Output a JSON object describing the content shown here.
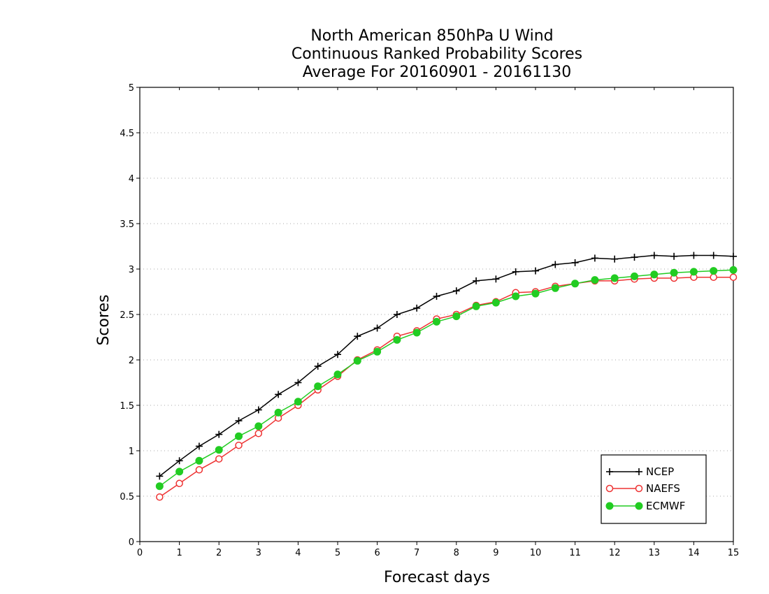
{
  "chart_data": {
    "type": "line",
    "title_lines": [
      "North American 850hPa U Wind",
      "Continuous Ranked Probability Scores",
      "Average For 20160901 - 20161130"
    ],
    "xlabel": "Forecast days",
    "ylabel": "Scores",
    "xlim": [
      0,
      15
    ],
    "ylim": [
      0,
      5
    ],
    "x_ticks": [
      0,
      1,
      2,
      3,
      4,
      5,
      6,
      7,
      8,
      9,
      10,
      11,
      12,
      13,
      14,
      15
    ],
    "y_ticks": [
      0,
      0.5,
      1,
      1.5,
      2,
      2.5,
      3,
      3.5,
      4,
      4.5,
      5
    ],
    "grid": "horizontal dotted",
    "legend_position": "bottom-right",
    "x": [
      0.5,
      1,
      1.5,
      2,
      2.5,
      3,
      3.5,
      4,
      4.5,
      5,
      5.5,
      6,
      6.5,
      7,
      7.5,
      8,
      8.5,
      9,
      9.5,
      10,
      10.5,
      11,
      11.5,
      12,
      12.5,
      13,
      13.5,
      14,
      14.5,
      15
    ],
    "series": [
      {
        "name": "NCEP",
        "color": "#000000",
        "marker": "plus",
        "values": [
          0.72,
          0.89,
          1.05,
          1.18,
          1.33,
          1.45,
          1.62,
          1.75,
          1.93,
          2.06,
          2.26,
          2.35,
          2.5,
          2.57,
          2.7,
          2.76,
          2.87,
          2.89,
          2.97,
          2.98,
          3.05,
          3.07,
          3.12,
          3.11,
          3.13,
          3.15,
          3.14,
          3.15,
          3.15,
          3.14
        ]
      },
      {
        "name": "NAEFS",
        "color": "#ee3333",
        "marker": "open-circle",
        "values": [
          0.49,
          0.64,
          0.79,
          0.91,
          1.06,
          1.19,
          1.36,
          1.5,
          1.67,
          1.82,
          2.0,
          2.11,
          2.26,
          2.32,
          2.45,
          2.5,
          2.6,
          2.64,
          2.74,
          2.75,
          2.81,
          2.84,
          2.87,
          2.87,
          2.89,
          2.9,
          2.9,
          2.91,
          2.91,
          2.91
        ]
      },
      {
        "name": "ECMWF",
        "color": "#22cc22",
        "marker": "filled-circle",
        "values": [
          0.61,
          0.77,
          0.89,
          1.01,
          1.16,
          1.27,
          1.42,
          1.54,
          1.71,
          1.84,
          1.99,
          2.09,
          2.22,
          2.3,
          2.42,
          2.48,
          2.59,
          2.63,
          2.7,
          2.73,
          2.79,
          2.84,
          2.88,
          2.9,
          2.92,
          2.94,
          2.96,
          2.97,
          2.98,
          2.99
        ]
      }
    ]
  }
}
